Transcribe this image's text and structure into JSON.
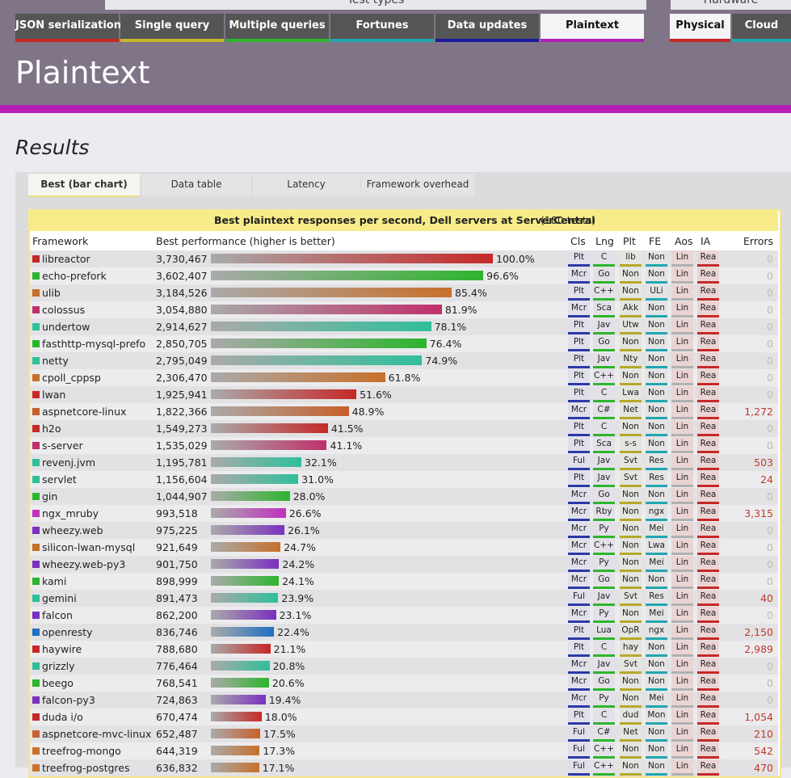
{
  "header": {
    "test_types_label": "Test types",
    "hardware_label": "Hardware",
    "tabs": [
      "JSON serialization",
      "Single query",
      "Multiple queries",
      "Fortunes",
      "Data updates",
      "Plaintext"
    ],
    "hardware_tabs": [
      "Physical",
      "Cloud"
    ],
    "title": "Plaintext"
  },
  "results_heading": "Results",
  "view_tabs": [
    "Best (bar chart)",
    "Data table",
    "Latency",
    "Framework overhead"
  ],
  "table": {
    "title": "Best plaintext responses per second, Dell servers at ServerCentral",
    "count": "(180 tests)",
    "columns": [
      "Framework",
      "Best performance (higher is better)",
      "Cls",
      "Lng",
      "Plt",
      "FE",
      "Aos",
      "IA",
      "Errors"
    ],
    "rows": [
      {
        "name": "libreactor",
        "color": "#c62828",
        "perf": "3,730,467",
        "pct": 100.0,
        "pct_label": "100.0%",
        "cls": "Plt",
        "lng": "C",
        "plt": "lib",
        "fe": "Non",
        "aos": "Lin",
        "ia": "Rea",
        "errors": "0"
      },
      {
        "name": "echo-prefork",
        "color": "#2db52d",
        "perf": "3,602,407",
        "pct": 96.6,
        "pct_label": "96.6%",
        "cls": "Mcr",
        "lng": "Go",
        "plt": "Non",
        "fe": "Non",
        "aos": "Lin",
        "ia": "Rea",
        "errors": "0"
      },
      {
        "name": "ulib",
        "color": "#c8702a",
        "perf": "3,184,526",
        "pct": 85.4,
        "pct_label": "85.4%",
        "cls": "Plt",
        "lng": "C++",
        "plt": "Non",
        "fe": "ULi",
        "aos": "Lin",
        "ia": "Rea",
        "errors": "0"
      },
      {
        "name": "colossus",
        "color": "#c0306a",
        "perf": "3,054,880",
        "pct": 81.9,
        "pct_label": "81.9%",
        "cls": "Mcr",
        "lng": "Sca",
        "plt": "Akk",
        "fe": "Non",
        "aos": "Lin",
        "ia": "Rea",
        "errors": "0"
      },
      {
        "name": "undertow",
        "color": "#2fbf9a",
        "perf": "2,914,627",
        "pct": 78.1,
        "pct_label": "78.1%",
        "cls": "Plt",
        "lng": "Jav",
        "plt": "Utw",
        "fe": "Non",
        "aos": "Lin",
        "ia": "Rea",
        "errors": "0"
      },
      {
        "name": "fasthttp-mysql-prefo",
        "color": "#2db52d",
        "perf": "2,850,705",
        "pct": 76.4,
        "pct_label": "76.4%",
        "cls": "Plt",
        "lng": "Go",
        "plt": "Non",
        "fe": "Non",
        "aos": "Lin",
        "ia": "Rea",
        "errors": "0"
      },
      {
        "name": "netty",
        "color": "#2fbf9a",
        "perf": "2,795,049",
        "pct": 74.9,
        "pct_label": "74.9%",
        "cls": "Plt",
        "lng": "Jav",
        "plt": "Nty",
        "fe": "Non",
        "aos": "Lin",
        "ia": "Rea",
        "errors": "0"
      },
      {
        "name": "cpoll_cppsp",
        "color": "#c8702a",
        "perf": "2,306,470",
        "pct": 61.8,
        "pct_label": "61.8%",
        "cls": "Plt",
        "lng": "C++",
        "plt": "Non",
        "fe": "Non",
        "aos": "Lin",
        "ia": "Rea",
        "errors": "0"
      },
      {
        "name": "lwan",
        "color": "#c62828",
        "perf": "1,925,941",
        "pct": 51.6,
        "pct_label": "51.6%",
        "cls": "Plt",
        "lng": "C",
        "plt": "Lwa",
        "fe": "Non",
        "aos": "Lin",
        "ia": "Rea",
        "errors": "0"
      },
      {
        "name": "aspnetcore-linux",
        "color": "#c8602a",
        "perf": "1,822,366",
        "pct": 48.9,
        "pct_label": "48.9%",
        "cls": "Mcr",
        "lng": "C#",
        "plt": "Net",
        "fe": "Non",
        "aos": "Lin",
        "ia": "Rea",
        "errors": "1,272"
      },
      {
        "name": "h2o",
        "color": "#c62828",
        "perf": "1,549,273",
        "pct": 41.5,
        "pct_label": "41.5%",
        "cls": "Plt",
        "lng": "C",
        "plt": "Non",
        "fe": "Non",
        "aos": "Lin",
        "ia": "Rea",
        "errors": "0"
      },
      {
        "name": "s-server",
        "color": "#c0306a",
        "perf": "1,535,029",
        "pct": 41.1,
        "pct_label": "41.1%",
        "cls": "Plt",
        "lng": "Sca",
        "plt": "s-s",
        "fe": "Non",
        "aos": "Lin",
        "ia": "Rea",
        "errors": "0"
      },
      {
        "name": "revenj.jvm",
        "color": "#2fbf9a",
        "perf": "1,195,781",
        "pct": 32.1,
        "pct_label": "32.1%",
        "cls": "Ful",
        "lng": "Jav",
        "plt": "Svt",
        "fe": "Res",
        "aos": "Lin",
        "ia": "Rea",
        "errors": "503"
      },
      {
        "name": "servlet",
        "color": "#2fbf9a",
        "perf": "1,156,604",
        "pct": 31.0,
        "pct_label": "31.0%",
        "cls": "Plt",
        "lng": "Jav",
        "plt": "Svt",
        "fe": "Res",
        "aos": "Lin",
        "ia": "Rea",
        "errors": "24"
      },
      {
        "name": "gin",
        "color": "#2db52d",
        "perf": "1,044,907",
        "pct": 28.0,
        "pct_label": "28.0%",
        "cls": "Mcr",
        "lng": "Go",
        "plt": "Non",
        "fe": "Non",
        "aos": "Lin",
        "ia": "Rea",
        "errors": "0"
      },
      {
        "name": "ngx_mruby",
        "color": "#c030c0",
        "perf": "993,518",
        "pct": 26.6,
        "pct_label": "26.6%",
        "cls": "Mcr",
        "lng": "Rby",
        "plt": "Non",
        "fe": "ngx",
        "aos": "Lin",
        "ia": "Rea",
        "errors": "3,315"
      },
      {
        "name": "wheezy.web",
        "color": "#7a30c0",
        "perf": "975,225",
        "pct": 26.1,
        "pct_label": "26.1%",
        "cls": "Mcr",
        "lng": "Py",
        "plt": "Non",
        "fe": "Mei",
        "aos": "Lin",
        "ia": "Rea",
        "errors": "0"
      },
      {
        "name": "silicon-lwan-mysql",
        "color": "#c8702a",
        "perf": "921,649",
        "pct": 24.7,
        "pct_label": "24.7%",
        "cls": "Mcr",
        "lng": "C++",
        "plt": "Non",
        "fe": "Lwa",
        "aos": "Lin",
        "ia": "Rea",
        "errors": "0"
      },
      {
        "name": "wheezy.web-py3",
        "color": "#7a30c0",
        "perf": "901,750",
        "pct": 24.2,
        "pct_label": "24.2%",
        "cls": "Mcr",
        "lng": "Py",
        "plt": "Non",
        "fe": "Mei",
        "aos": "Lin",
        "ia": "Rea",
        "errors": "0"
      },
      {
        "name": "kami",
        "color": "#2db52d",
        "perf": "898,999",
        "pct": 24.1,
        "pct_label": "24.1%",
        "cls": "Mcr",
        "lng": "Go",
        "plt": "Non",
        "fe": "Non",
        "aos": "Lin",
        "ia": "Rea",
        "errors": "0"
      },
      {
        "name": "gemini",
        "color": "#2fbf9a",
        "perf": "891,473",
        "pct": 23.9,
        "pct_label": "23.9%",
        "cls": "Ful",
        "lng": "Jav",
        "plt": "Svt",
        "fe": "Res",
        "aos": "Lin",
        "ia": "Rea",
        "errors": "40"
      },
      {
        "name": "falcon",
        "color": "#7a30c0",
        "perf": "862,200",
        "pct": 23.1,
        "pct_label": "23.1%",
        "cls": "Mcr",
        "lng": "Py",
        "plt": "Non",
        "fe": "Mei",
        "aos": "Lin",
        "ia": "Rea",
        "errors": "0"
      },
      {
        "name": "openresty",
        "color": "#2070c0",
        "perf": "836,746",
        "pct": 22.4,
        "pct_label": "22.4%",
        "cls": "Plt",
        "lng": "Lua",
        "plt": "OpR",
        "fe": "ngx",
        "aos": "Lin",
        "ia": "Rea",
        "errors": "2,150"
      },
      {
        "name": "haywire",
        "color": "#c62828",
        "perf": "788,680",
        "pct": 21.1,
        "pct_label": "21.1%",
        "cls": "Plt",
        "lng": "C",
        "plt": "hay",
        "fe": "Non",
        "aos": "Lin",
        "ia": "Rea",
        "errors": "2,989"
      },
      {
        "name": "grizzly",
        "color": "#2fbf9a",
        "perf": "776,464",
        "pct": 20.8,
        "pct_label": "20.8%",
        "cls": "Mcr",
        "lng": "Jav",
        "plt": "Svt",
        "fe": "Non",
        "aos": "Lin",
        "ia": "Rea",
        "errors": "0"
      },
      {
        "name": "beego",
        "color": "#2db52d",
        "perf": "768,541",
        "pct": 20.6,
        "pct_label": "20.6%",
        "cls": "Mcr",
        "lng": "Go",
        "plt": "Non",
        "fe": "Non",
        "aos": "Lin",
        "ia": "Rea",
        "errors": "0"
      },
      {
        "name": "falcon-py3",
        "color": "#7a30c0",
        "perf": "724,863",
        "pct": 19.4,
        "pct_label": "19.4%",
        "cls": "Mcr",
        "lng": "Py",
        "plt": "Non",
        "fe": "Mei",
        "aos": "Lin",
        "ia": "Rea",
        "errors": "0"
      },
      {
        "name": "duda i/o",
        "color": "#c62828",
        "perf": "670,474",
        "pct": 18.0,
        "pct_label": "18.0%",
        "cls": "Plt",
        "lng": "C",
        "plt": "dud",
        "fe": "Mon",
        "aos": "Lin",
        "ia": "Rea",
        "errors": "1,054"
      },
      {
        "name": "aspnetcore-mvc-linux",
        "color": "#c8602a",
        "perf": "652,487",
        "pct": 17.5,
        "pct_label": "17.5%",
        "cls": "Ful",
        "lng": "C#",
        "plt": "Net",
        "fe": "Non",
        "aos": "Lin",
        "ia": "Rea",
        "errors": "210"
      },
      {
        "name": "treefrog-mongo",
        "color": "#c8702a",
        "perf": "644,319",
        "pct": 17.3,
        "pct_label": "17.3%",
        "cls": "Ful",
        "lng": "C++",
        "plt": "Non",
        "fe": "Non",
        "aos": "Lin",
        "ia": "Rea",
        "errors": "542"
      },
      {
        "name": "treefrog-postgres",
        "color": "#c8702a",
        "perf": "636,832",
        "pct": 17.1,
        "pct_label": "17.1%",
        "cls": "Ful",
        "lng": "C++",
        "plt": "Non",
        "fe": "Non",
        "aos": "Lin",
        "ia": "Rea",
        "errors": "470"
      }
    ]
  }
}
